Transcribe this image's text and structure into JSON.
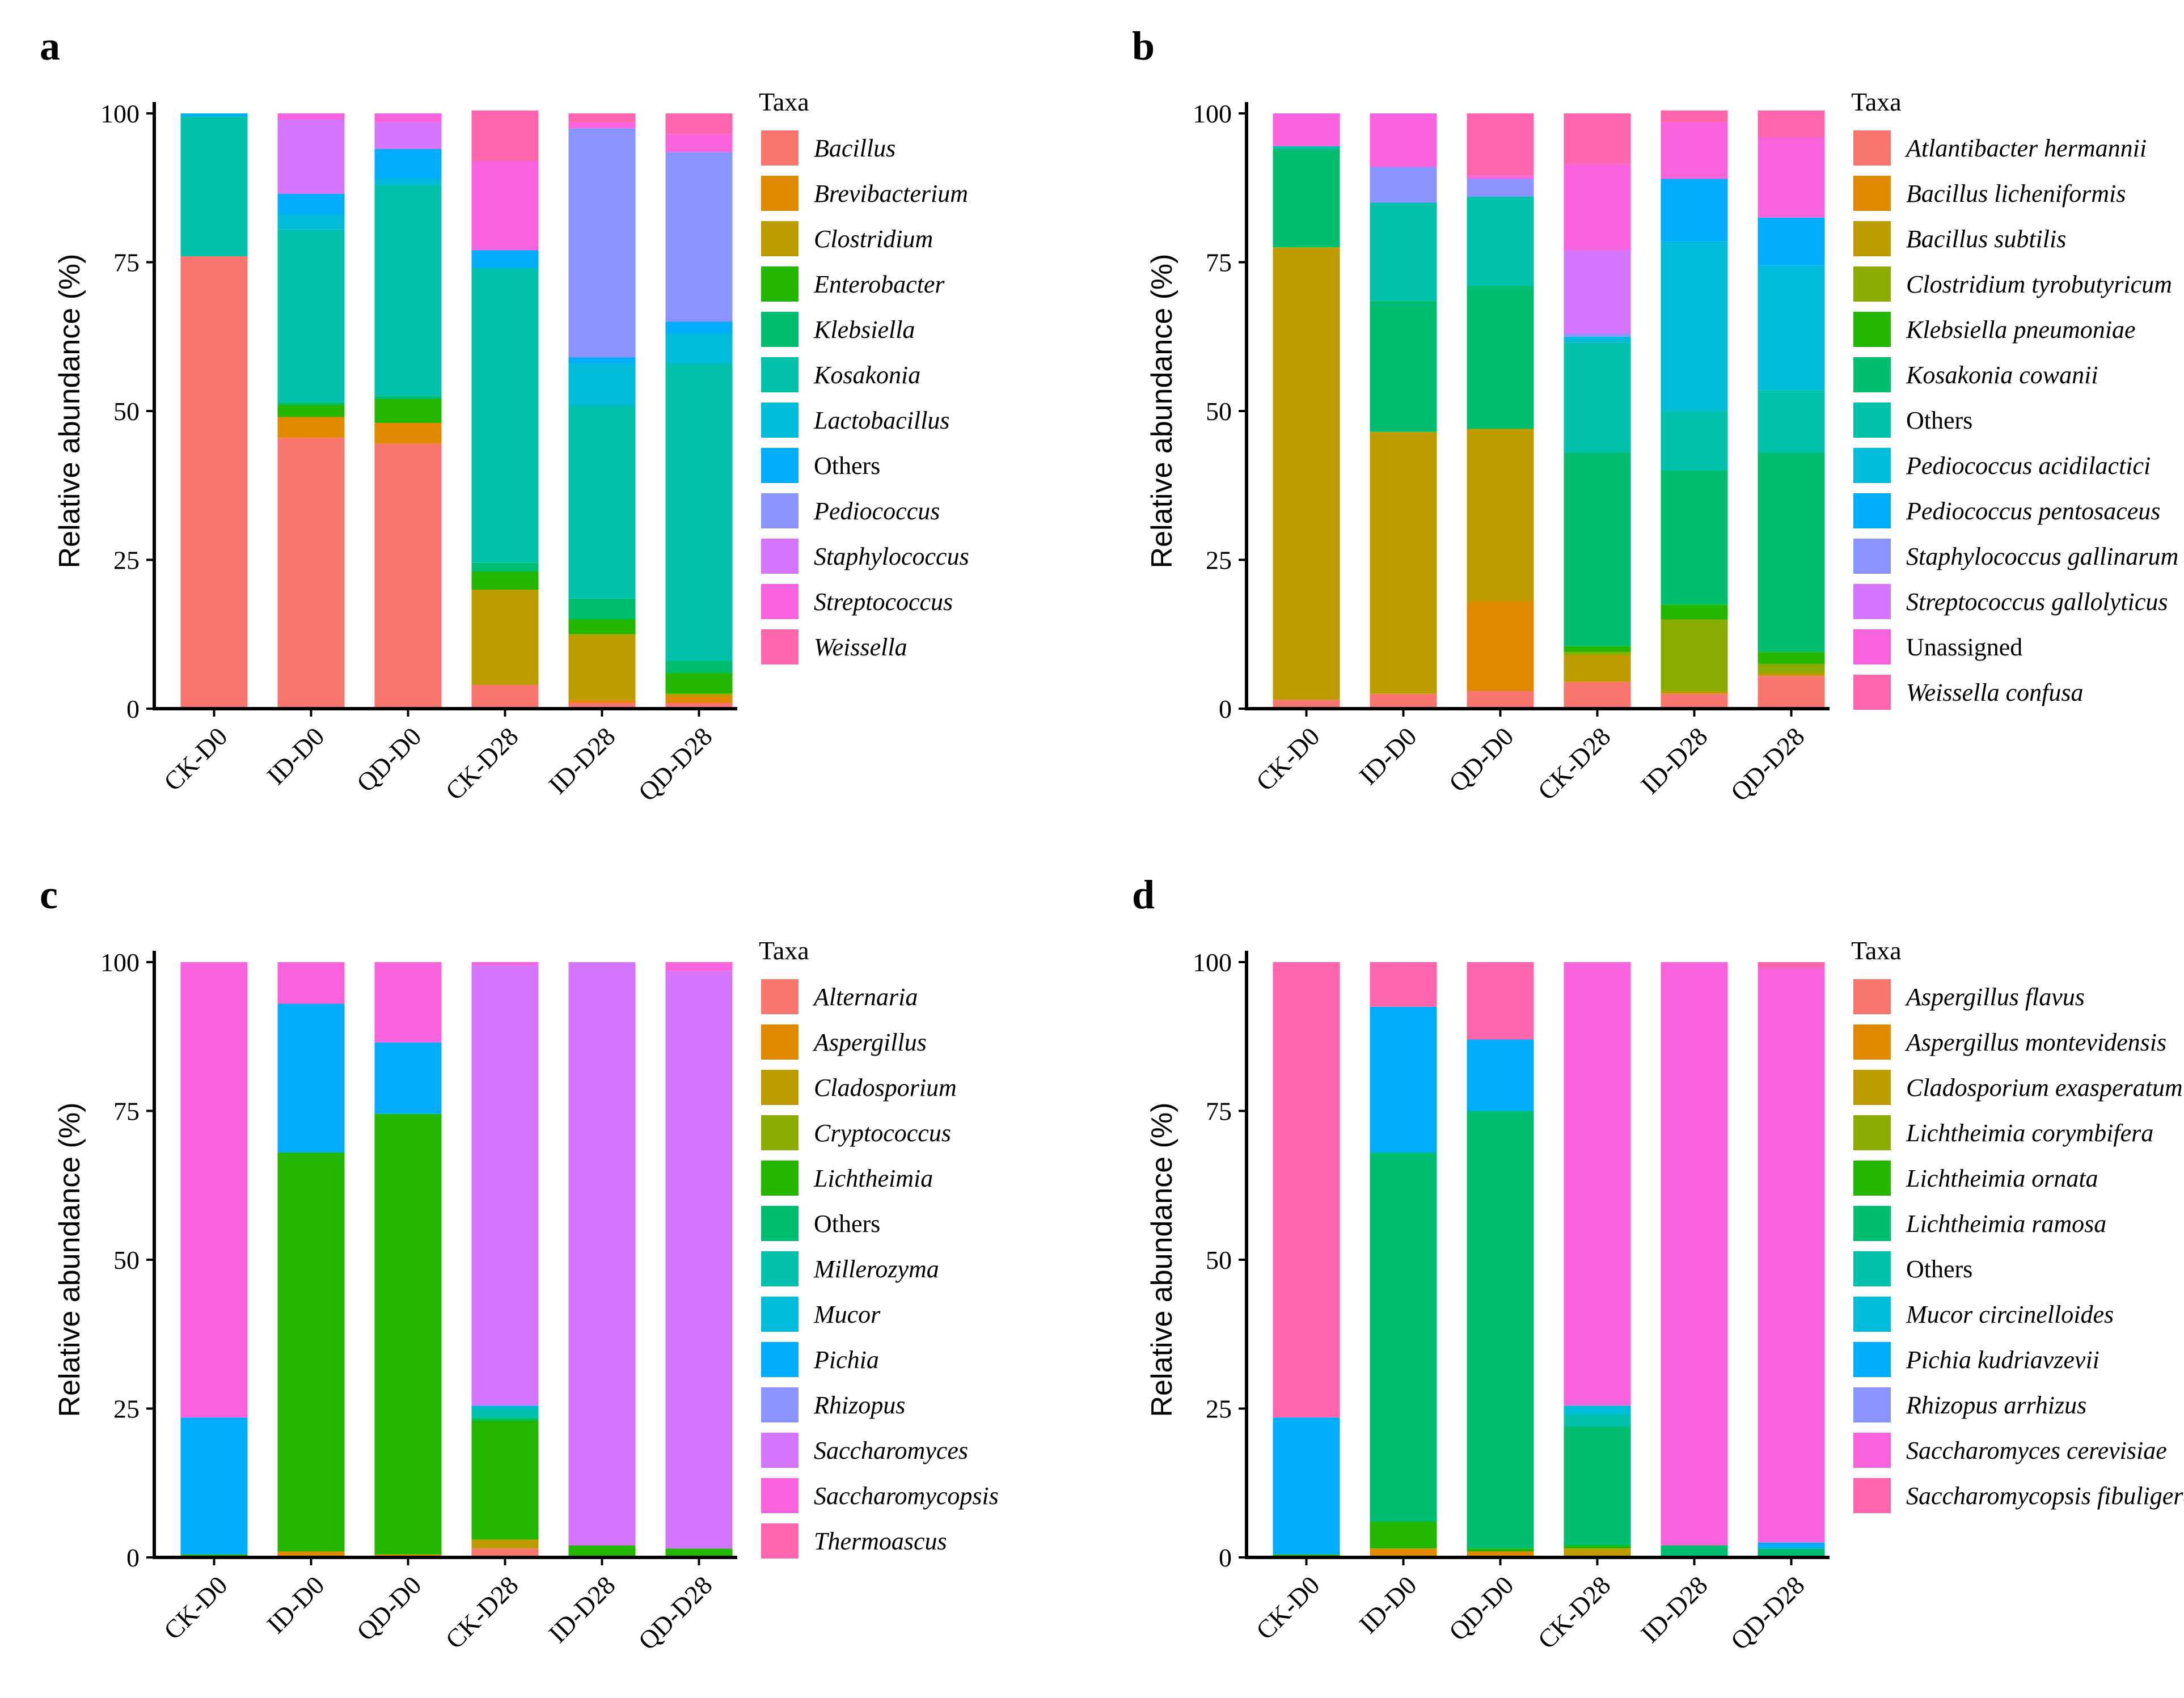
{
  "chart_data": [
    {
      "panel": "a",
      "type": "bar",
      "stacked": true,
      "ylabel": "Relative abundance (%)",
      "xlabel": "",
      "ylim": [
        0,
        100
      ],
      "yticks": [
        0,
        25,
        50,
        75,
        100
      ],
      "categories": [
        "CK-D0",
        "ID-D0",
        "QD-D0",
        "CK-D28",
        "ID-D28",
        "QD-D28"
      ],
      "legend_title": "Taxa",
      "series": [
        {
          "name": "Bacillus",
          "color": "#F8766D",
          "italic": true,
          "values": [
            76,
            45.5,
            44.5,
            4,
            1,
            1
          ]
        },
        {
          "name": "Brevibacterium",
          "color": "#E18A00",
          "italic": true,
          "values": [
            0,
            3.5,
            3.5,
            0,
            0.5,
            1
          ]
        },
        {
          "name": "Clostridium",
          "color": "#BE9C00",
          "italic": true,
          "values": [
            0,
            0,
            0,
            16,
            11,
            0.5
          ]
        },
        {
          "name": "Enterobacter",
          "color": "#24B700",
          "italic": true,
          "values": [
            0,
            2,
            4,
            3,
            2.5,
            3.5
          ]
        },
        {
          "name": "Klebsiella",
          "color": "#00BE70",
          "italic": true,
          "values": [
            0,
            0.5,
            0.5,
            1.5,
            3.5,
            2
          ]
        },
        {
          "name": "Kosakonia",
          "color": "#00C1AB",
          "italic": true,
          "values": [
            23.5,
            29,
            35.5,
            49.5,
            32.5,
            50
          ]
        },
        {
          "name": "Lactobacillus",
          "color": "#00BBDA",
          "italic": true,
          "values": [
            0,
            2.5,
            1,
            0,
            7,
            5
          ]
        },
        {
          "name": "Others",
          "color": "#00ACFC",
          "italic": false,
          "values": [
            0.5,
            3.5,
            5,
            3,
            1,
            2
          ]
        },
        {
          "name": "Pediococcus",
          "color": "#8B93FF",
          "italic": true,
          "values": [
            0,
            0,
            0,
            0,
            38.5,
            28.5
          ]
        },
        {
          "name": "Staphylococcus",
          "color": "#D575FE",
          "italic": true,
          "values": [
            0,
            12.5,
            4.5,
            0,
            0,
            0
          ]
        },
        {
          "name": "Streptococcus",
          "color": "#F962DD",
          "italic": true,
          "values": [
            0,
            1,
            1.5,
            15,
            1,
            3
          ]
        },
        {
          "name": "Weissella",
          "color": "#FF65AC",
          "italic": true,
          "values": [
            0,
            0,
            0,
            8.5,
            1.5,
            3.5
          ]
        }
      ]
    },
    {
      "panel": "b",
      "type": "bar",
      "stacked": true,
      "ylabel": "Relative abundance (%)",
      "xlabel": "",
      "ylim": [
        0,
        100
      ],
      "yticks": [
        0,
        25,
        50,
        75,
        100
      ],
      "categories": [
        "CK-D0",
        "ID-D0",
        "QD-D0",
        "CK-D28",
        "ID-D28",
        "QD-D28"
      ],
      "legend_title": "Taxa",
      "series": [
        {
          "name": "Atlantibacter hermannii",
          "color": "#F8766D",
          "italic": true,
          "values": [
            1.5,
            2.5,
            3,
            4.5,
            2.5,
            5.5
          ]
        },
        {
          "name": "Bacillus licheniformis",
          "color": "#E18A00",
          "italic": true,
          "values": [
            0,
            0,
            15,
            0,
            0,
            0
          ]
        },
        {
          "name": "Bacillus subtilis",
          "color": "#BE9C00",
          "italic": true,
          "values": [
            76,
            44,
            29,
            4.5,
            0.5,
            0.5
          ]
        },
        {
          "name": "Clostridium tyrobutyricum",
          "color": "#8CAB00",
          "italic": true,
          "values": [
            0,
            0,
            0,
            0.5,
            12,
            1.5
          ]
        },
        {
          "name": "Klebsiella pneumoniae",
          "color": "#24B700",
          "italic": true,
          "values": [
            0,
            0,
            0,
            1,
            2.5,
            2
          ]
        },
        {
          "name": "Kosakonia cowanii",
          "color": "#00BE70",
          "italic": true,
          "values": [
            16.5,
            22,
            24,
            32.5,
            22.5,
            33.5
          ]
        },
        {
          "name": "Others",
          "color": "#00C1AB",
          "italic": false,
          "values": [
            0.5,
            16.5,
            15,
            18.5,
            10,
            10.5
          ]
        },
        {
          "name": "Pediococcus acidilactici",
          "color": "#00BBDA",
          "italic": true,
          "values": [
            0,
            0,
            0,
            1,
            28.5,
            21
          ]
        },
        {
          "name": "Pediococcus pentosaceus",
          "color": "#00ACFC",
          "italic": true,
          "values": [
            0,
            0,
            0,
            0,
            10.5,
            8
          ]
        },
        {
          "name": "Staphylococcus gallinarum",
          "color": "#8B93FF",
          "italic": true,
          "values": [
            0,
            6,
            3,
            0.5,
            0,
            0
          ]
        },
        {
          "name": "Streptococcus gallolyticus",
          "color": "#D575FE",
          "italic": true,
          "values": [
            0,
            0,
            0,
            14,
            0,
            0
          ]
        },
        {
          "name": "Unassigned",
          "color": "#F962DD",
          "italic": false,
          "values": [
            5.5,
            9,
            0.5,
            14.5,
            9.5,
            13.5
          ]
        },
        {
          "name": "Weissella confusa",
          "color": "#FF65AC",
          "italic": true,
          "values": [
            0,
            0,
            10.5,
            8.5,
            2,
            4.5
          ]
        }
      ]
    },
    {
      "panel": "c",
      "type": "bar",
      "stacked": true,
      "ylabel": "Relative abundance (%)",
      "xlabel": "",
      "ylim": [
        0,
        100
      ],
      "yticks": [
        0,
        25,
        50,
        75,
        100
      ],
      "categories": [
        "CK-D0",
        "ID-D0",
        "QD-D0",
        "CK-D28",
        "ID-D28",
        "QD-D28"
      ],
      "legend_title": "Taxa",
      "series": [
        {
          "name": "Alternaria",
          "color": "#F8766D",
          "italic": true,
          "values": [
            0,
            0,
            0,
            1.5,
            0,
            0
          ]
        },
        {
          "name": "Aspergillus",
          "color": "#E18A00",
          "italic": true,
          "values": [
            0,
            1,
            0.5,
            0,
            0,
            0
          ]
        },
        {
          "name": "Cladosporium",
          "color": "#BE9C00",
          "italic": true,
          "values": [
            0,
            0,
            0,
            1.5,
            0,
            0
          ]
        },
        {
          "name": "Cryptococcus",
          "color": "#8CAB00",
          "italic": true,
          "values": [
            0,
            0,
            0,
            0,
            0,
            0
          ]
        },
        {
          "name": "Lichtheimia",
          "color": "#24B700",
          "italic": true,
          "values": [
            0.5,
            67,
            74,
            20,
            2,
            1.5
          ]
        },
        {
          "name": "Others",
          "color": "#00BE70",
          "italic": false,
          "values": [
            0,
            0,
            0,
            0.5,
            0,
            0
          ]
        },
        {
          "name": "Millerozyma",
          "color": "#00C1AB",
          "italic": true,
          "values": [
            0,
            0,
            0,
            1.5,
            0,
            0
          ]
        },
        {
          "name": "Mucor",
          "color": "#00BBDA",
          "italic": true,
          "values": [
            0,
            0,
            0,
            0.5,
            0,
            0
          ]
        },
        {
          "name": "Pichia",
          "color": "#00ACFC",
          "italic": true,
          "values": [
            23,
            25,
            12,
            0,
            0,
            0
          ]
        },
        {
          "name": "Rhizopus",
          "color": "#8B93FF",
          "italic": true,
          "values": [
            0,
            0,
            0,
            0,
            0,
            0
          ]
        },
        {
          "name": "Saccharomyces",
          "color": "#D575FE",
          "italic": true,
          "values": [
            0,
            0,
            0,
            74,
            98,
            97
          ]
        },
        {
          "name": "Saccharomycopsis",
          "color": "#F962DD",
          "italic": true,
          "values": [
            76.5,
            7,
            13.5,
            0.5,
            0,
            1.5
          ]
        },
        {
          "name": "Thermoascus",
          "color": "#FF65AC",
          "italic": true,
          "values": [
            0,
            0,
            0,
            0,
            0,
            0
          ]
        }
      ]
    },
    {
      "panel": "d",
      "type": "bar",
      "stacked": true,
      "ylabel": "Relative abundance (%)",
      "xlabel": "",
      "ylim": [
        0,
        100
      ],
      "yticks": [
        0,
        25,
        50,
        75,
        100
      ],
      "categories": [
        "CK-D0",
        "ID-D0",
        "QD-D0",
        "CK-D28",
        "ID-D28",
        "QD-D28"
      ],
      "legend_title": "Taxa",
      "series": [
        {
          "name": "Aspergillus flavus",
          "color": "#F8766D",
          "italic": true,
          "values": [
            0,
            0,
            0,
            0,
            0,
            0
          ]
        },
        {
          "name": "Aspergillus montevidensis",
          "color": "#E18A00",
          "italic": true,
          "values": [
            0,
            1.5,
            1,
            0,
            0,
            0
          ]
        },
        {
          "name": "Cladosporium exasperatum",
          "color": "#BE9C00",
          "italic": true,
          "values": [
            0,
            0,
            0,
            1.5,
            0,
            0
          ]
        },
        {
          "name": "Lichtheimia corymbifera",
          "color": "#8CAB00",
          "italic": true,
          "values": [
            0,
            0,
            0,
            0,
            0,
            0
          ]
        },
        {
          "name": "Lichtheimia ornata",
          "color": "#24B700",
          "italic": true,
          "values": [
            0.5,
            4.5,
            0.5,
            0.5,
            0,
            0
          ]
        },
        {
          "name": "Lichtheimia ramosa",
          "color": "#00BE70",
          "italic": true,
          "values": [
            0,
            62,
            73.5,
            20,
            2,
            1.5
          ]
        },
        {
          "name": "Others",
          "color": "#00C1AB",
          "italic": false,
          "values": [
            0,
            0,
            0,
            2,
            0,
            0
          ]
        },
        {
          "name": "Mucor circinelloides",
          "color": "#00BBDA",
          "italic": true,
          "values": [
            0,
            0,
            0,
            1.5,
            0,
            0
          ]
        },
        {
          "name": "Pichia kudriavzevii",
          "color": "#00ACFC",
          "italic": true,
          "values": [
            23,
            24.5,
            12,
            0,
            0,
            1
          ]
        },
        {
          "name": "Rhizopus arrhizus",
          "color": "#8B93FF",
          "italic": true,
          "values": [
            0,
            0,
            0,
            0,
            0,
            0
          ]
        },
        {
          "name": "Saccharomyces cerevisiae",
          "color": "#F962DD",
          "italic": true,
          "values": [
            0,
            0,
            0,
            74.5,
            98,
            96.5
          ]
        },
        {
          "name": "Saccharomycopsis fibuligera",
          "color": "#FF65AC",
          "italic": true,
          "values": [
            76.5,
            7.5,
            13,
            0,
            0,
            1
          ]
        }
      ]
    }
  ]
}
